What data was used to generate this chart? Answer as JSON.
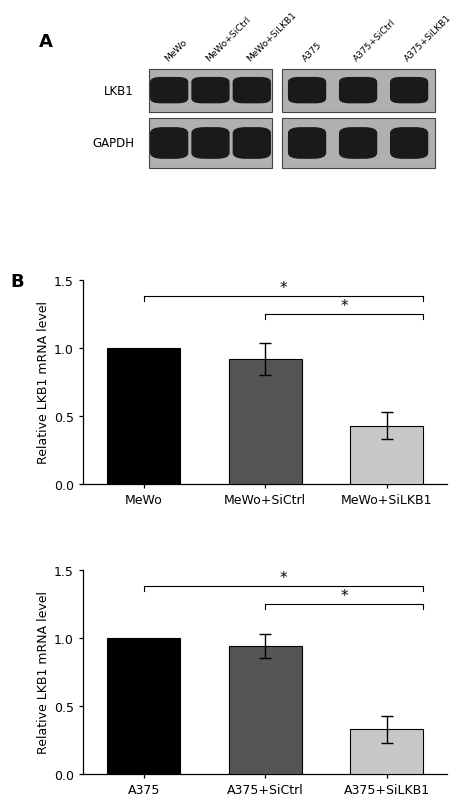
{
  "panel_A_labels": [
    "MeWo",
    "MeWo+SiCtrl",
    "MeWo+SiLKB1",
    "A375",
    "A375+SiCtrl",
    "A375+SiLKB1"
  ],
  "wb_row_labels": [
    "LKB1",
    "GAPDH"
  ],
  "panel_B1_categories": [
    "MeWo",
    "MeWo+SiCtrl",
    "MeWo+SiLKB1"
  ],
  "panel_B1_values": [
    1.0,
    0.92,
    0.43
  ],
  "panel_B1_errors": [
    0.0,
    0.12,
    0.1
  ],
  "panel_B1_colors": [
    "#000000",
    "#555555",
    "#c8c8c8"
  ],
  "panel_B2_categories": [
    "A375",
    "A375+SiCtrl",
    "A375+SiLKB1"
  ],
  "panel_B2_values": [
    1.0,
    0.94,
    0.33
  ],
  "panel_B2_errors": [
    0.0,
    0.09,
    0.1
  ],
  "panel_B2_colors": [
    "#000000",
    "#555555",
    "#c8c8c8"
  ],
  "ylabel": "Relative LKB1 mRNA level",
  "ylim": [
    0,
    1.5
  ],
  "yticks": [
    0.0,
    0.5,
    1.0,
    1.5
  ],
  "bar_width": 0.6,
  "panel_A_label": "A",
  "panel_B_label": "B",
  "wb_gel_color": "#b0b0b0",
  "wb_band_color": "#222222",
  "figure_bg": "#ffffff"
}
